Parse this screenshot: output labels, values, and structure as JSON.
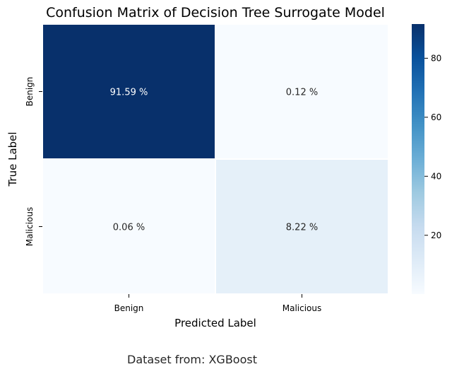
{
  "chart_data": {
    "type": "heatmap",
    "title": "Confusion Matrix of Decision Tree Surrogate Model",
    "xlabel": "Predicted Label",
    "ylabel": "True Label",
    "x_categories": [
      "Benign",
      "Malicious"
    ],
    "y_categories": [
      "Benign",
      "Malicious"
    ],
    "values": [
      [
        91.59,
        0.12
      ],
      [
        0.06,
        8.22
      ]
    ],
    "cell_labels": [
      [
        "91.59 %",
        "0.12 %"
      ],
      [
        "0.06 %",
        "8.22 %"
      ]
    ],
    "colormap": "Blues",
    "colorbar_range": [
      0.06,
      91.59
    ],
    "colorbar_ticks": [
      20,
      40,
      60,
      80
    ],
    "cell_border_color": "#ffffff"
  },
  "caption": "Dataset from: XGBoost"
}
